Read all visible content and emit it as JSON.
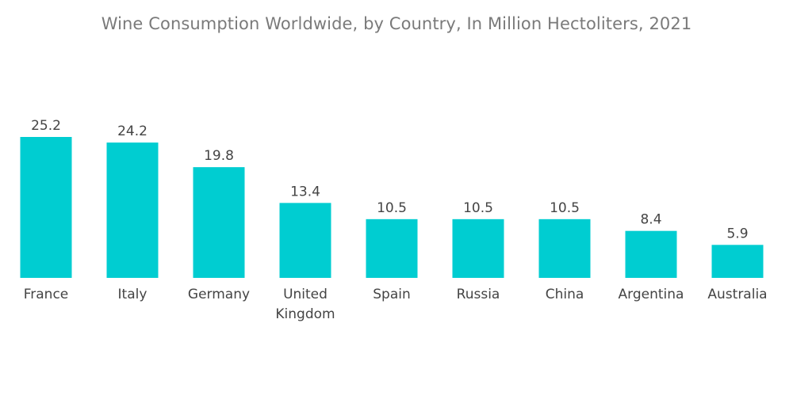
{
  "chart_data": {
    "type": "bar",
    "title": "Wine Consumption Worldwide, by Country,  In Million Hectoliters, 2021",
    "categories": [
      [
        "France"
      ],
      [
        "Italy"
      ],
      [
        "Germany"
      ],
      [
        "United",
        "Kingdom"
      ],
      [
        "Spain"
      ],
      [
        "Russia"
      ],
      [
        "China"
      ],
      [
        "Argentina"
      ],
      [
        "Australia"
      ]
    ],
    "values": [
      25.2,
      24.2,
      19.8,
      13.4,
      10.5,
      10.5,
      10.5,
      8.4,
      5.9
    ],
    "value_labels": [
      "25.2",
      "24.2",
      "19.8",
      "13.4",
      "10.5",
      "10.5",
      "10.5",
      "8.4",
      "5.9"
    ],
    "xlabel": "",
    "ylabel": "",
    "ylim": [
      0,
      25.2
    ],
    "grid": false,
    "bar_color": "#00cdd1"
  }
}
